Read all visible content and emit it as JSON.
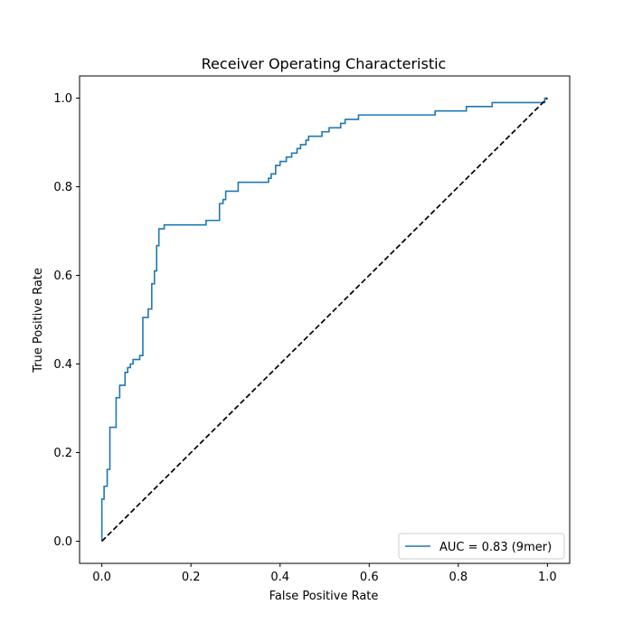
{
  "chart_data": {
    "type": "line",
    "title": "Receiver Operating Characteristic",
    "xlabel": "False Positive Rate",
    "ylabel": "True Positive Rate",
    "xlim": [
      -0.05,
      1.05
    ],
    "ylim": [
      -0.05,
      1.05
    ],
    "xticks": [
      0.0,
      0.2,
      0.4,
      0.6,
      0.8,
      1.0
    ],
    "yticks": [
      0.0,
      0.2,
      0.4,
      0.6,
      0.8,
      1.0
    ],
    "xtick_labels": [
      "0.0",
      "0.2",
      "0.4",
      "0.6",
      "0.8",
      "1.0"
    ],
    "ytick_labels": [
      "0.0",
      "0.2",
      "0.4",
      "0.6",
      "0.8",
      "1.0"
    ],
    "grid": false,
    "legend_position": "bottom-right",
    "series": [
      {
        "name": "AUC = 0.83 (9mer)",
        "color": "#1f77b4",
        "style": "solid",
        "step": true,
        "x": [
          0.0,
          0.0,
          0.005,
          0.005,
          0.012,
          0.012,
          0.018,
          0.018,
          0.022,
          0.022,
          0.032,
          0.032,
          0.04,
          0.04,
          0.052,
          0.052,
          0.058,
          0.058,
          0.064,
          0.064,
          0.07,
          0.07,
          0.085,
          0.085,
          0.092,
          0.092,
          0.104,
          0.104,
          0.112,
          0.112,
          0.118,
          0.118,
          0.123,
          0.123,
          0.128,
          0.128,
          0.14,
          0.14,
          0.234,
          0.234,
          0.264,
          0.264,
          0.272,
          0.272,
          0.278,
          0.278,
          0.306,
          0.306,
          0.374,
          0.374,
          0.38,
          0.38,
          0.39,
          0.39,
          0.4,
          0.4,
          0.414,
          0.414,
          0.426,
          0.426,
          0.438,
          0.438,
          0.446,
          0.446,
          0.458,
          0.458,
          0.464,
          0.464,
          0.494,
          0.494,
          0.51,
          0.51,
          0.536,
          0.536,
          0.546,
          0.546,
          0.576,
          0.576,
          0.644,
          0.644,
          0.748,
          0.748,
          0.818,
          0.818,
          0.876,
          0.876,
          0.994,
          0.994,
          1.0
        ],
        "y": [
          0.0,
          0.095,
          0.095,
          0.124,
          0.124,
          0.162,
          0.162,
          0.257,
          0.257,
          0.257,
          0.257,
          0.324,
          0.324,
          0.352,
          0.352,
          0.381,
          0.381,
          0.392,
          0.392,
          0.4,
          0.4,
          0.41,
          0.41,
          0.419,
          0.419,
          0.505,
          0.505,
          0.524,
          0.524,
          0.581,
          0.581,
          0.61,
          0.61,
          0.667,
          0.667,
          0.705,
          0.705,
          0.714,
          0.714,
          0.724,
          0.724,
          0.762,
          0.762,
          0.771,
          0.771,
          0.79,
          0.79,
          0.81,
          0.81,
          0.819,
          0.819,
          0.829,
          0.829,
          0.848,
          0.848,
          0.857,
          0.857,
          0.867,
          0.867,
          0.876,
          0.876,
          0.886,
          0.886,
          0.895,
          0.895,
          0.905,
          0.905,
          0.914,
          0.914,
          0.924,
          0.924,
          0.933,
          0.933,
          0.943,
          0.943,
          0.952,
          0.952,
          0.962,
          0.962,
          0.962,
          0.962,
          0.971,
          0.971,
          0.981,
          0.981,
          0.99,
          0.99,
          1.0,
          1.0
        ]
      },
      {
        "name": "",
        "color": "#000000",
        "style": "dashed",
        "step": false,
        "x": [
          0.0,
          1.0
        ],
        "y": [
          0.0,
          1.0
        ]
      }
    ]
  }
}
